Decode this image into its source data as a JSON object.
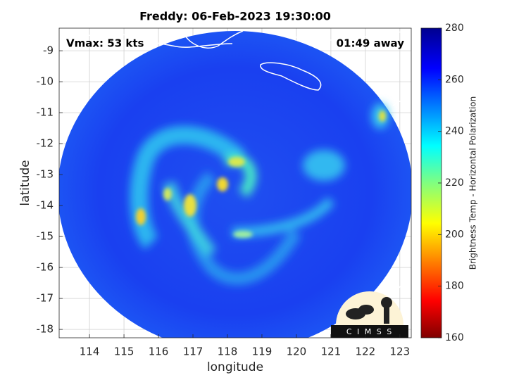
{
  "chart_data": {
    "type": "image",
    "title": "Freddy: 06-Feb-2023 19:30:00",
    "xlabel": "longitude",
    "ylabel": "latitude",
    "xlim": [
      113.12,
      123.33
    ],
    "ylim": [
      -18.27,
      -8.27
    ],
    "xticks": [
      114,
      115,
      116,
      117,
      118,
      119,
      120,
      121,
      122,
      123
    ],
    "yticks": [
      -9,
      -10,
      -11,
      -12,
      -13,
      -14,
      -15,
      -16,
      -17,
      -18
    ],
    "grid": true,
    "annotations": [
      "Vmax: 53 kts",
      "01:49 away"
    ],
    "colorbar": {
      "label": "Brightness Temp - Horizontal Polarization",
      "lim": [
        160,
        280
      ],
      "ticks": [
        160,
        180,
        200,
        220,
        240,
        260,
        280
      ]
    },
    "logo": "C I M S S"
  }
}
